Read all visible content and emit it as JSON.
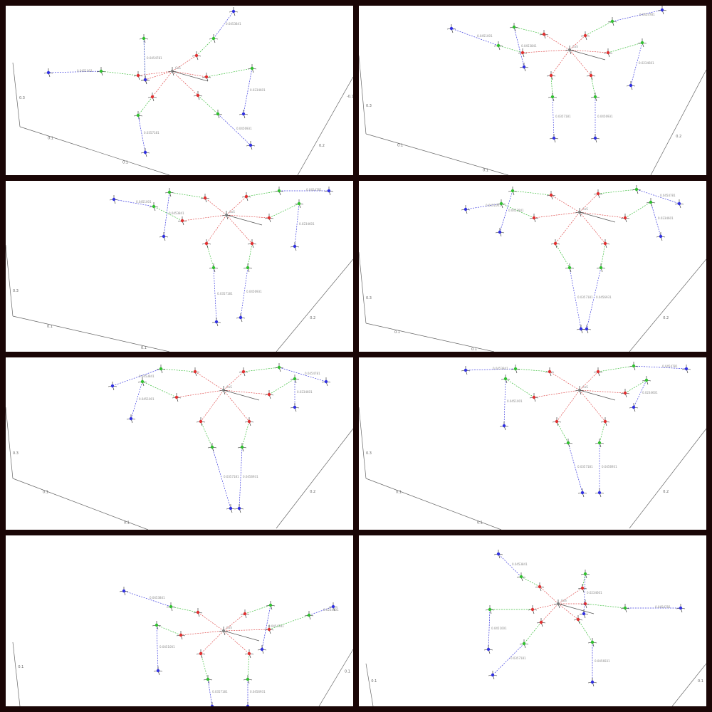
{
  "panels": [
    {
      "id": 1,
      "origin_label": "CoS",
      "edge_labels": [
        "0.0357181",
        "0.0456931",
        "0.0451001",
        "0.0453841",
        "0.0454781",
        "0.0234601"
      ],
      "axis_labels": [
        "0.1",
        "0.2",
        "0.3",
        "0.1",
        "-0.1"
      ]
    },
    {
      "id": 2,
      "origin_label": "CoS",
      "edge_labels": [
        "0.0357181",
        "0.0456931",
        "0.0451001",
        "0.0453841",
        "0.0454781",
        "0.0234601",
        "0.0346871"
      ],
      "axis_labels": [
        "0.1",
        "0.2",
        "0.3",
        "0.1"
      ]
    },
    {
      "id": 3,
      "origin_label": "CoS",
      "edge_labels": [
        "0.0357181",
        "0.0456931",
        "0.0451001",
        "0.0453841",
        "0.0454781",
        "0.0234601",
        "0.0346871"
      ],
      "axis_labels": [
        "0.1",
        "0.2",
        "0.3",
        "0.1"
      ]
    },
    {
      "id": 4,
      "origin_label": "CoS",
      "edge_labels": [
        "0.0357181",
        "0.0456931",
        "0.0451001",
        "0.0453841",
        "0.0454781",
        "0.0234601",
        "0.0346871"
      ],
      "axis_labels": [
        "0.1",
        "0.2",
        "0.3",
        "0.1"
      ]
    },
    {
      "id": 5,
      "origin_label": "CoS",
      "edge_labels": [
        "0.0357181",
        "0.0456931",
        "0.0451001",
        "0.0453841",
        "0.0454781",
        "0.0234601",
        "0.0346871"
      ],
      "axis_labels": [
        "0.1",
        "0.2",
        "0.3",
        "0.1"
      ]
    },
    {
      "id": 6,
      "origin_label": "CoS",
      "edge_labels": [
        "0.0357181",
        "0.0456931",
        "0.0451001",
        "0.0453841",
        "0.0454781",
        "0.0234601",
        "0.0346871"
      ],
      "axis_labels": [
        "0.1",
        "0.2",
        "0.3",
        "0.1"
      ]
    },
    {
      "id": 7,
      "origin_label": "CoS",
      "edge_labels": [
        "0.0357181",
        "0.0456931",
        "0.0451001",
        "0.0453841",
        "0.0454781",
        "0.0234601"
      ],
      "axis_labels": [
        "0.1",
        "0.1"
      ]
    },
    {
      "id": 8,
      "origin_label": "CoS",
      "edge_labels": [
        "0.0357181",
        "0.0456931",
        "0.0451001",
        "0.0453841",
        "0.0454781",
        "0.0234601"
      ],
      "axis_labels": [
        "0.1",
        "0.1"
      ]
    }
  ],
  "colors": {
    "background": "#1a0606",
    "panel": "#ffffff",
    "root_link": "#e05050",
    "mid_link": "#40c040",
    "end_link": "#4040e0",
    "axis_x": "#ff0000",
    "axis_y": "#00aa00",
    "axis_z": "#0000ff",
    "frame_line": "#666666"
  },
  "icons": [
    "coordinate-frame-icon"
  ]
}
